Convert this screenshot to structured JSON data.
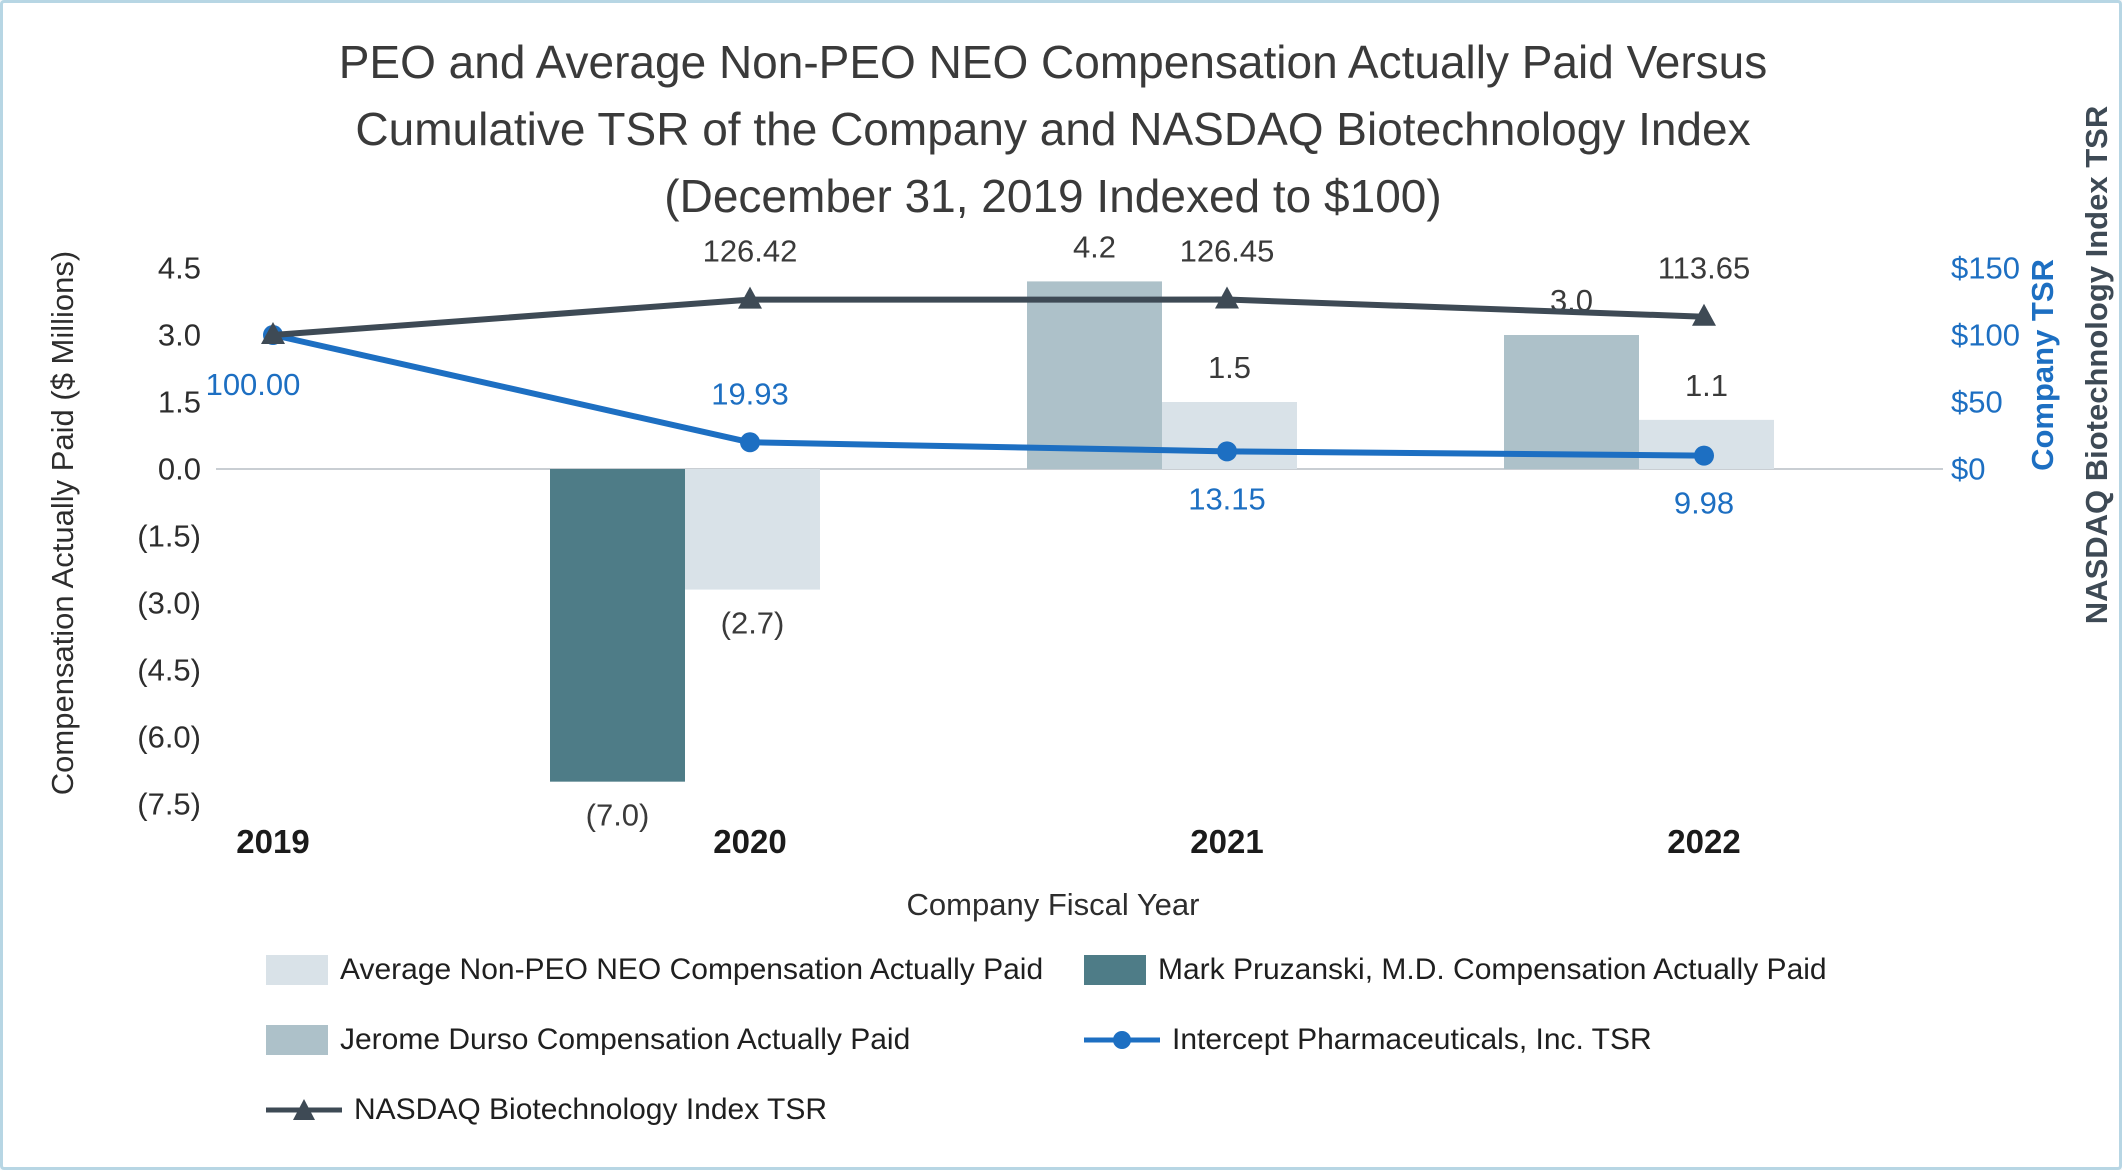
{
  "frame": {
    "background": "#ffffff",
    "border_color": "#b7d6e4"
  },
  "title": {
    "lines": [
      "PEO and Average Non-PEO NEO Compensation Actually Paid Versus",
      "Cumulative TSR of the Company and NASDAQ Biotechnology Index",
      "(December 31, 2019 Indexed to $100)"
    ]
  },
  "chart_data": {
    "type": "combo-bar-line",
    "categories": [
      "2019",
      "2020",
      "2021",
      "2022"
    ],
    "x_axis_title": "Company Fiscal Year",
    "gridlines": "zero-line-only",
    "legend_position": "bottom-left",
    "left_axis": {
      "title": "Compensation Actually Paid ($ Millions)",
      "tick_labels": [
        "4.5",
        "3.0",
        "1.5",
        "0.0",
        "(1.5)",
        "(3.0)",
        "(4.5)",
        "(6.0)",
        "(7.5)"
      ],
      "tick_values": [
        4.5,
        3.0,
        1.5,
        0.0,
        -1.5,
        -3.0,
        -4.5,
        -6.0,
        -7.5
      ],
      "min": -7.5,
      "max": 4.5
    },
    "right_axis": {
      "titles": [
        {
          "text": "Company TSR",
          "color": "#1d6fc2"
        },
        {
          "text": "NASDAQ Biotechnology Index TSR",
          "color": "#3e4a55"
        }
      ],
      "tick_labels": [
        "$150",
        "$100",
        "$50",
        "$0"
      ],
      "tick_values": [
        150,
        100,
        50,
        0
      ],
      "min": 0,
      "max": 150
    },
    "bar_series": [
      {
        "name": "Mark Pruzanski, M.D. Compensation Actually Paid",
        "color": "#4e7c87",
        "slot": "peo",
        "values": [
          null,
          -7.0,
          null,
          null
        ],
        "data_labels": [
          null,
          "(7.0)",
          null,
          null
        ]
      },
      {
        "name": "Jerome Durso Compensation Actually Paid",
        "color": "#adc1c9",
        "slot": "peo",
        "values": [
          null,
          null,
          4.2,
          3.0
        ],
        "data_labels": [
          null,
          null,
          "4.2",
          "3.0"
        ]
      },
      {
        "name": "Average Non-PEO NEO Compensation Actually Paid",
        "color": "#d9e2e8",
        "slot": "avg",
        "values": [
          null,
          -2.7,
          1.5,
          1.1
        ],
        "data_labels": [
          null,
          "(2.7)",
          "1.5",
          "1.1"
        ]
      }
    ],
    "line_series": [
      {
        "name": "Intercept Pharmaceuticals, Inc. TSR",
        "color": "#1d6fc2",
        "label_color": "#1d6fc2",
        "marker": "circle",
        "values": [
          100.0,
          19.93,
          13.15,
          9.98
        ],
        "data_labels": [
          "100.00",
          "19.93",
          "13.15",
          "9.98"
        ],
        "label_positions": [
          "below-left",
          "above",
          "below",
          "below"
        ]
      },
      {
        "name": "NASDAQ Biotechnology Index TSR",
        "color": "#3e4a55",
        "label_color": "#3a3a3a",
        "marker": "triangle",
        "values": [
          100,
          126.42,
          126.45,
          113.65
        ],
        "data_labels": [
          null,
          "126.42",
          "126.45",
          "113.65"
        ],
        "label_positions": [
          null,
          "above",
          "above",
          "above"
        ]
      }
    ],
    "legend": [
      {
        "label": "Average Non-PEO NEO Compensation Actually Paid",
        "swatch": "rect",
        "color": "#d9e2e8"
      },
      {
        "label": "Mark Pruzanski, M.D. Compensation Actually Paid",
        "swatch": "rect",
        "color": "#4e7c87"
      },
      {
        "label": "Jerome Durso Compensation Actually Paid",
        "swatch": "rect",
        "color": "#adc1c9"
      },
      {
        "label": "Intercept Pharmaceuticals, Inc. TSR",
        "swatch": "line-circle",
        "color": "#1d6fc2"
      },
      {
        "label": "NASDAQ Biotechnology Index TSR",
        "swatch": "line-triangle",
        "color": "#3e4a55"
      }
    ]
  }
}
